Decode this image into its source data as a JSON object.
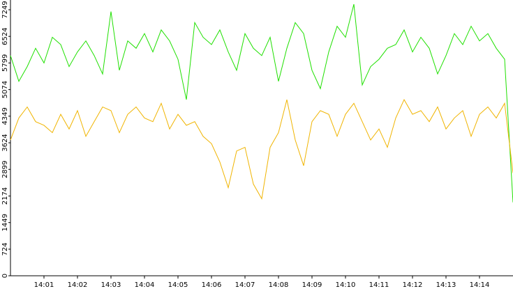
{
  "chart_data": {
    "type": "line",
    "categories": [
      null,
      null,
      null,
      null,
      "14:01",
      null,
      null,
      null,
      "14:02",
      null,
      null,
      null,
      "14:03",
      null,
      null,
      null,
      "14:04",
      null,
      null,
      null,
      "14:05",
      null,
      null,
      null,
      "14:06",
      null,
      null,
      null,
      "14:07",
      null,
      null,
      null,
      "14:08",
      null,
      null,
      null,
      "14:09",
      null,
      null,
      null,
      "14:10",
      null,
      null,
      null,
      "14:11",
      null,
      null,
      null,
      "14:12",
      null,
      null,
      null,
      "14:13",
      null,
      null,
      null,
      "14:14",
      null,
      null,
      null,
      null
    ],
    "series": [
      {
        "name": "green",
        "color": "#1fe000",
        "values": [
          6000,
          5300,
          5700,
          6200,
          5800,
          6500,
          6300,
          5700,
          6100,
          6400,
          6000,
          5500,
          7200,
          5600,
          6400,
          6200,
          6600,
          6100,
          6700,
          6400,
          5900,
          4800,
          6900,
          6500,
          6300,
          6700,
          6100,
          5600,
          6600,
          6200,
          6000,
          6500,
          5300,
          6200,
          6900,
          6600,
          5600,
          5100,
          6100,
          6800,
          6500,
          7400,
          5200,
          5700,
          5900,
          6200,
          6300,
          6700,
          6100,
          6500,
          6200,
          5500,
          6000,
          6600,
          6300,
          6800,
          6400,
          6600,
          6200,
          5900,
          2000
        ]
      },
      {
        "name": "yellow",
        "color": "#f0b400",
        "values": [
          3700,
          4300,
          4600,
          4200,
          4100,
          3900,
          4400,
          4000,
          4500,
          3800,
          4200,
          4600,
          4500,
          3900,
          4400,
          4600,
          4300,
          4200,
          4700,
          4000,
          4400,
          4100,
          4200,
          3800,
          3600,
          3100,
          2400,
          3400,
          3500,
          2500,
          2100,
          3500,
          3900,
          4800,
          3700,
          3000,
          4200,
          4500,
          4400,
          3800,
          4400,
          4700,
          4200,
          3700,
          4000,
          3500,
          4300,
          4800,
          4400,
          4500,
          4200,
          4600,
          4000,
          4300,
          4500,
          3800,
          4400,
          4600,
          4300,
          4700,
          2800
        ]
      }
    ],
    "ylim": [
      0,
      7515
    ],
    "yticks": [
      0,
      724,
      1449,
      2174,
      2899,
      3624,
      4349,
      5074,
      5799,
      6524,
      7249
    ]
  }
}
